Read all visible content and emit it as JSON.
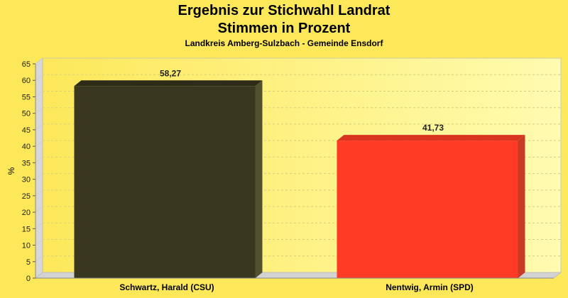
{
  "chart_data": {
    "type": "bar",
    "title": "Ergebnis zur Stichwahl Landrat",
    "subtitle": "Stimmen in Prozent",
    "caption": "Landkreis Amberg-Sulzbach - Gemeinde Ensdorf",
    "ylabel": "%",
    "xlabel": "",
    "ylim": [
      0,
      65
    ],
    "yticks": [
      0,
      5,
      10,
      15,
      20,
      25,
      30,
      35,
      40,
      45,
      50,
      55,
      60,
      65
    ],
    "grid": true,
    "categories": [
      "Schwartz, Harald (CSU)",
      "Nentwig, Armin (SPD)"
    ],
    "values": [
      58.27,
      41.73
    ],
    "value_labels": [
      "58,27",
      "41,73"
    ],
    "colors": [
      "#3a3720",
      "#ff3b26"
    ],
    "side_colors": [
      "#52502e",
      "#c83c25"
    ],
    "top_colors": [
      "#2e2c19",
      "#d8341f"
    ]
  }
}
